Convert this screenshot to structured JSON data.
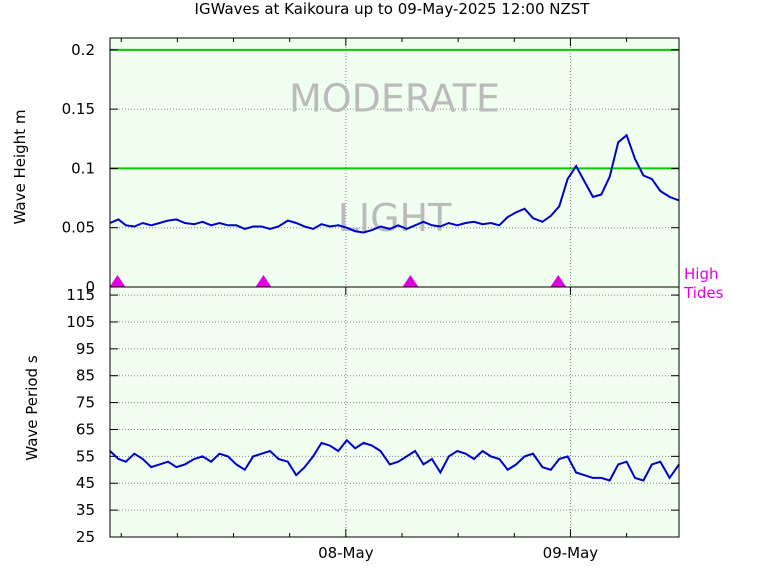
{
  "chart_data": [
    {
      "type": "line",
      "title": "IGWaves at Kaikoura up to 09-May-2025 12:00 NZST",
      "ylabel": "Wave Height m",
      "ylim": [
        0,
        0.21
      ],
      "yticks": [
        "0",
        "0.05",
        "0.1",
        "0.15",
        "0.2"
      ],
      "ytick_values": [
        0,
        0.05,
        0.1,
        0.15,
        0.2
      ],
      "x_range_hours": [
        -25.2,
        35.6
      ],
      "thresholds": [
        0.1,
        0.2
      ],
      "threshold_color": "#00cc00",
      "band_labels": [
        {
          "text": "MODERATE",
          "y": 0.159
        },
        {
          "text": "LIGHT",
          "y": 0.058
        }
      ],
      "series_color": "#0000cc",
      "high_tides_label": [
        "High",
        "Tides"
      ],
      "high_tides_color": "#e000e0",
      "high_tide_times_hours": [
        -24.4,
        -8.8,
        6.9,
        22.7
      ],
      "grid": true,
      "x": [
        -25.2,
        -24.3,
        -23.5,
        -22.6,
        -21.7,
        -20.8,
        -19.9,
        -19.0,
        -18.1,
        -17.2,
        -16.2,
        -15.3,
        -14.4,
        -13.5,
        -12.6,
        -11.7,
        -10.8,
        -9.9,
        -9.0,
        -8.1,
        -7.2,
        -6.2,
        -5.3,
        -4.4,
        -3.5,
        -2.6,
        -1.7,
        -0.8,
        0.1,
        1.0,
        1.9,
        2.8,
        3.7,
        4.7,
        5.6,
        6.5,
        7.4,
        8.3,
        9.2,
        10.1,
        11.0,
        11.9,
        12.8,
        13.7,
        14.6,
        15.5,
        16.4,
        17.3,
        18.2,
        19.1,
        20.0,
        21.0,
        21.9,
        22.8,
        23.7,
        24.6,
        25.5,
        26.4,
        27.3,
        28.2,
        29.1,
        30.0,
        30.9,
        31.8,
        32.7,
        33.6,
        34.6,
        35.6
      ],
      "y": [
        0.054,
        0.057,
        0.052,
        0.051,
        0.054,
        0.052,
        0.054,
        0.056,
        0.057,
        0.054,
        0.053,
        0.055,
        0.052,
        0.054,
        0.052,
        0.052,
        0.049,
        0.051,
        0.051,
        0.049,
        0.051,
        0.056,
        0.054,
        0.051,
        0.049,
        0.053,
        0.051,
        0.052,
        0.05,
        0.047,
        0.046,
        0.048,
        0.051,
        0.049,
        0.052,
        0.049,
        0.052,
        0.055,
        0.052,
        0.051,
        0.054,
        0.052,
        0.054,
        0.055,
        0.053,
        0.054,
        0.052,
        0.059,
        0.063,
        0.066,
        0.058,
        0.055,
        0.06,
        0.068,
        0.091,
        0.102,
        0.089,
        0.076,
        0.078,
        0.093,
        0.122,
        0.128,
        0.108,
        0.094,
        0.091,
        0.081,
        0.076,
        0.073
      ]
    },
    {
      "type": "line",
      "ylabel": "Wave Period s",
      "ylim": [
        25,
        118
      ],
      "yticks": [
        "25",
        "35",
        "45",
        "55",
        "65",
        "75",
        "85",
        "95",
        "105",
        "115"
      ],
      "ytick_values": [
        25,
        35,
        45,
        55,
        65,
        75,
        85,
        95,
        105,
        115
      ],
      "xticks": [
        "08-May",
        "09-May"
      ],
      "xtick_hours": [
        0,
        24
      ],
      "x_range_hours": [
        -25.2,
        35.6
      ],
      "series_color": "#0000cc",
      "grid": true,
      "x": [
        -25.2,
        -24.3,
        -23.5,
        -22.6,
        -21.7,
        -20.8,
        -19.9,
        -19.0,
        -18.1,
        -17.2,
        -16.2,
        -15.3,
        -14.4,
        -13.5,
        -12.6,
        -11.7,
        -10.8,
        -9.9,
        -9.0,
        -8.1,
        -7.2,
        -6.2,
        -5.3,
        -4.4,
        -3.5,
        -2.6,
        -1.7,
        -0.8,
        0.1,
        1.0,
        1.9,
        2.8,
        3.7,
        4.7,
        5.6,
        6.5,
        7.4,
        8.3,
        9.2,
        10.1,
        11.0,
        11.9,
        12.8,
        13.7,
        14.6,
        15.5,
        16.4,
        17.3,
        18.2,
        19.1,
        20.0,
        21.0,
        21.9,
        22.8,
        23.7,
        24.6,
        25.5,
        26.4,
        27.3,
        28.2,
        29.1,
        30.0,
        30.9,
        31.8,
        32.7,
        33.6,
        34.6,
        35.6
      ],
      "y": [
        57,
        54,
        53,
        56,
        54,
        51,
        52,
        53,
        51,
        52,
        54,
        55,
        53,
        56,
        55,
        52,
        50,
        55,
        56,
        57,
        54,
        53,
        48,
        51,
        55,
        60,
        59,
        57,
        61,
        58,
        60,
        59,
        57,
        52,
        53,
        55,
        57,
        52,
        54,
        49,
        55,
        57,
        56,
        54,
        57,
        55,
        54,
        50,
        52,
        55,
        56,
        51,
        50,
        54,
        55,
        49,
        48,
        47,
        47,
        46,
        52,
        53,
        47,
        46,
        52,
        53,
        47,
        52
      ]
    }
  ]
}
